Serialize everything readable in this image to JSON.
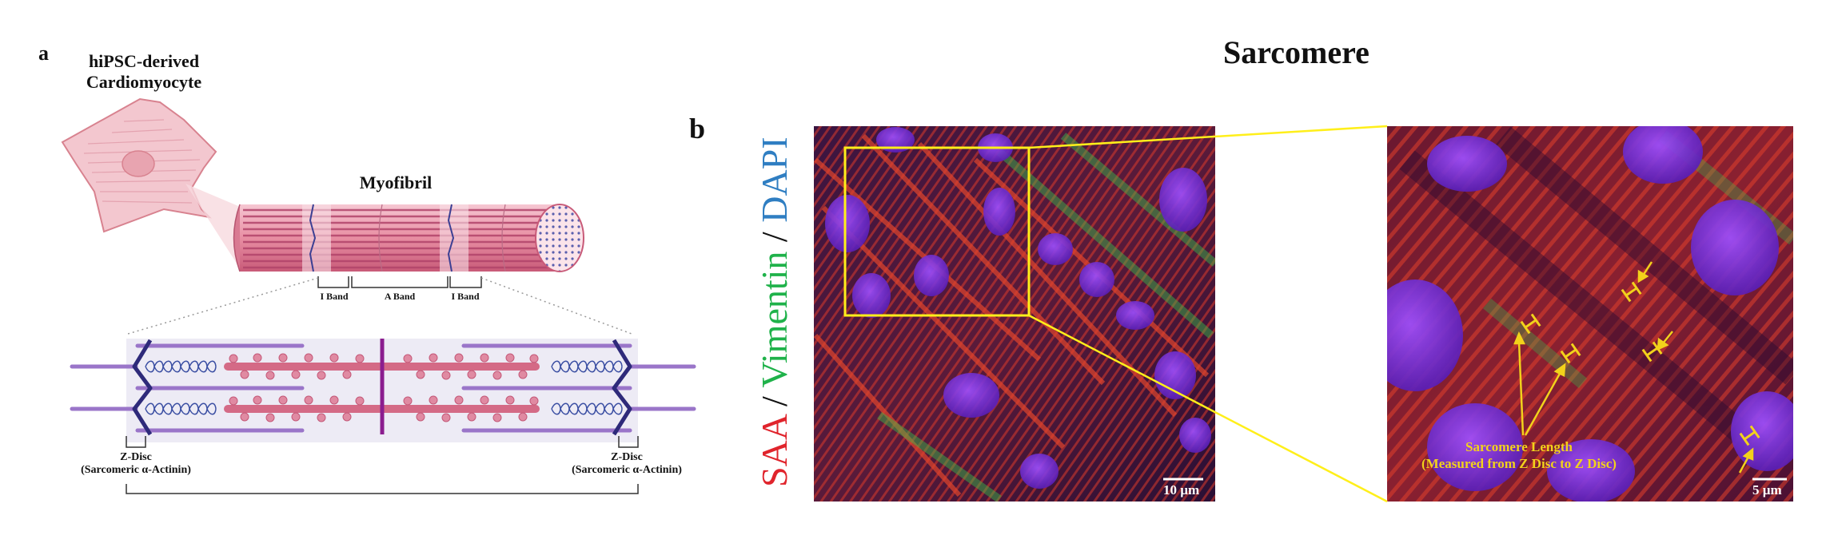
{
  "panel_a": {
    "letter": "a",
    "cell_title_line1": "hiPSC-derived",
    "cell_title_line2": "Cardiomyocyte",
    "myofibril_title": "Myofibril",
    "band_i_left": "I Band",
    "band_a": "A Band",
    "band_i_right": "I Band",
    "zdisc_left_line1": "Z-Disc",
    "zdisc_left_line2": "(Sarcomeric α-Actinin)",
    "zdisc_right_line1": "Z-Disc",
    "zdisc_right_line2": "(Sarcomeric α-Actinin)",
    "colors": {
      "cell": "#f2c4cc",
      "myofibril": "#e4879c",
      "actin": "#9a75c9",
      "titin": "#3b4fa3",
      "myosin": "#d46a86",
      "m_line": "#8b1d8f",
      "z_disc": "#2e2a7a"
    }
  },
  "panel_b": {
    "letter": "b",
    "title": "Sarcomere",
    "stain_saa": "SAA",
    "stain_sep1": " / ",
    "stain_vimentin": "Vimentin",
    "stain_sep2": " / ",
    "stain_dapi": "DAPI",
    "stain_colors": {
      "saa": "#e0242c",
      "vimentin": "#1fb24a",
      "dapi": "#2f7ec2"
    },
    "scale_left": "10 µm",
    "scale_right": "5 µm",
    "annotation_line1": "Sarcomere Length",
    "annotation_line2": "(Measured from Z Disc to Z Disc)",
    "annotation_color": "#f2d21b"
  }
}
